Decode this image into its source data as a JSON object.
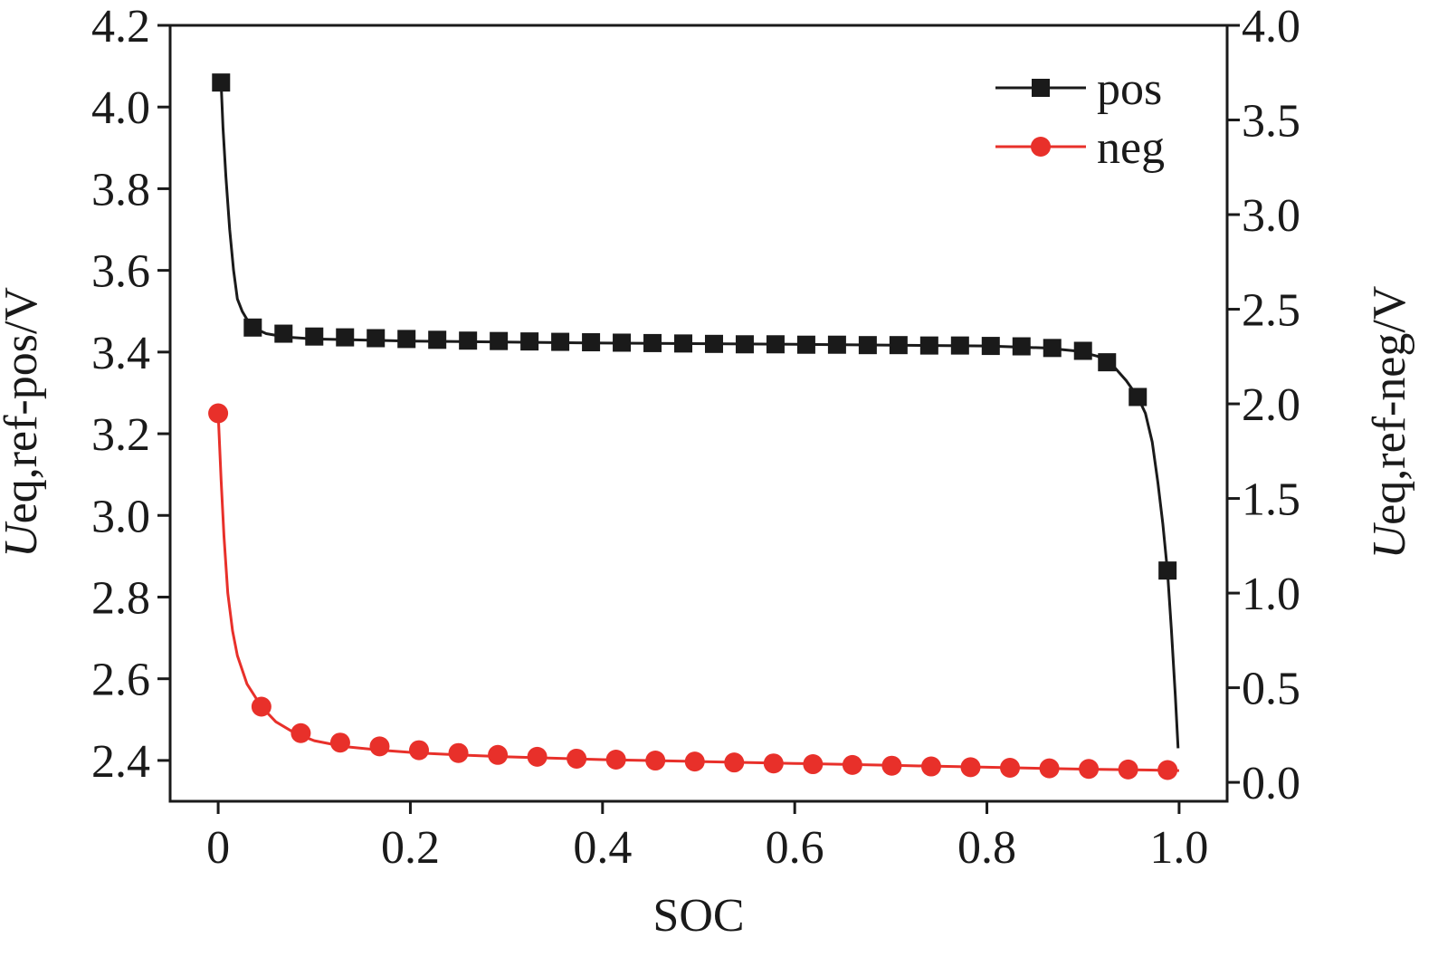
{
  "chart_data": {
    "type": "line",
    "xlabel": "SOC",
    "ylabel_left": {
      "italic": "U",
      "rest": "eq,ref-pos/V"
    },
    "ylabel_right": {
      "italic": "U",
      "rest": "eq,ref-neg/V"
    },
    "xlim": [
      -0.05,
      1.05
    ],
    "ylim_left": [
      2.3,
      4.2
    ],
    "ylim_right": [
      -0.1,
      4.0
    ],
    "x_ticks": [
      0,
      0.2,
      0.4,
      0.6,
      0.8,
      1.0
    ],
    "x_tick_labels": [
      "0",
      "0.2",
      "0.4",
      "0.6",
      "0.8",
      "1.0"
    ],
    "y_left_ticks": [
      2.4,
      2.6,
      2.8,
      3.0,
      3.2,
      3.4,
      3.6,
      3.8,
      4.0,
      4.2
    ],
    "y_left_tick_labels": [
      "2.4",
      "2.6",
      "2.8",
      "3.0",
      "3.2",
      "3.4",
      "3.6",
      "3.8",
      "4.0",
      "4.2"
    ],
    "y_right_ticks": [
      0,
      0.5,
      1.0,
      1.5,
      2.0,
      2.5,
      3.0,
      3.5,
      4.0
    ],
    "y_right_tick_labels": [
      "0.0",
      "0.5",
      "1.0",
      "1.5",
      "2.0",
      "2.5",
      "3.0",
      "3.5",
      "4.0"
    ],
    "legend_position": "top-right",
    "series": [
      {
        "name": "pos",
        "axis": "left",
        "color": "#1a1a1a",
        "marker": "square",
        "curve_x": [
          0.003,
          0.005,
          0.008,
          0.012,
          0.016,
          0.02,
          0.025,
          0.03,
          0.036,
          0.05,
          0.07,
          0.1,
          0.2,
          0.4,
          0.6,
          0.8,
          0.86,
          0.895,
          0.915,
          0.93,
          0.945,
          0.957,
          0.965,
          0.972,
          0.978,
          0.983,
          0.988,
          0.992,
          0.996,
          0.999
        ],
        "curve_y": [
          4.06,
          3.95,
          3.83,
          3.7,
          3.6,
          3.53,
          3.5,
          3.48,
          3.46,
          3.445,
          3.437,
          3.432,
          3.427,
          3.422,
          3.419,
          3.415,
          3.41,
          3.402,
          3.39,
          3.37,
          3.33,
          3.29,
          3.25,
          3.18,
          3.08,
          2.98,
          2.86,
          2.72,
          2.56,
          2.43
        ],
        "points_x": [
          0.003,
          0.036,
          0.068,
          0.1,
          0.132,
          0.164,
          0.196,
          0.228,
          0.26,
          0.292,
          0.324,
          0.356,
          0.388,
          0.42,
          0.452,
          0.484,
          0.516,
          0.548,
          0.58,
          0.612,
          0.644,
          0.676,
          0.708,
          0.74,
          0.772,
          0.804,
          0.836,
          0.868,
          0.9,
          0.925,
          0.957,
          0.988
        ],
        "points_y": [
          4.06,
          3.46,
          3.445,
          3.438,
          3.436,
          3.434,
          3.432,
          3.43,
          3.428,
          3.427,
          3.426,
          3.425,
          3.424,
          3.423,
          3.422,
          3.421,
          3.42,
          3.419,
          3.419,
          3.418,
          3.418,
          3.417,
          3.417,
          3.416,
          3.416,
          3.415,
          3.414,
          3.41,
          3.403,
          3.375,
          3.29,
          2.865
        ]
      },
      {
        "name": "neg",
        "axis": "right",
        "color": "#e8302a",
        "marker": "circle",
        "curve_x": [
          0.0,
          0.003,
          0.006,
          0.01,
          0.015,
          0.02,
          0.03,
          0.045,
          0.06,
          0.08,
          0.1,
          0.13,
          0.17,
          0.21,
          0.25,
          0.3,
          0.4,
          0.5,
          0.6,
          0.7,
          0.8,
          0.9,
          0.97,
          1.0
        ],
        "curve_y": [
          1.95,
          1.6,
          1.3,
          1.0,
          0.8,
          0.67,
          0.52,
          0.4,
          0.32,
          0.26,
          0.22,
          0.19,
          0.17,
          0.155,
          0.145,
          0.135,
          0.12,
          0.11,
          0.1,
          0.09,
          0.08,
          0.07,
          0.065,
          0.062
        ],
        "points_x": [
          0.0,
          0.045,
          0.086,
          0.127,
          0.168,
          0.209,
          0.25,
          0.291,
          0.332,
          0.373,
          0.414,
          0.455,
          0.496,
          0.537,
          0.578,
          0.619,
          0.66,
          0.701,
          0.742,
          0.783,
          0.824,
          0.865,
          0.906,
          0.947,
          0.988
        ],
        "points_y": [
          1.95,
          0.4,
          0.26,
          0.21,
          0.19,
          0.17,
          0.155,
          0.145,
          0.135,
          0.125,
          0.12,
          0.115,
          0.11,
          0.105,
          0.1,
          0.096,
          0.092,
          0.088,
          0.084,
          0.08,
          0.077,
          0.074,
          0.071,
          0.068,
          0.065
        ]
      }
    ]
  }
}
